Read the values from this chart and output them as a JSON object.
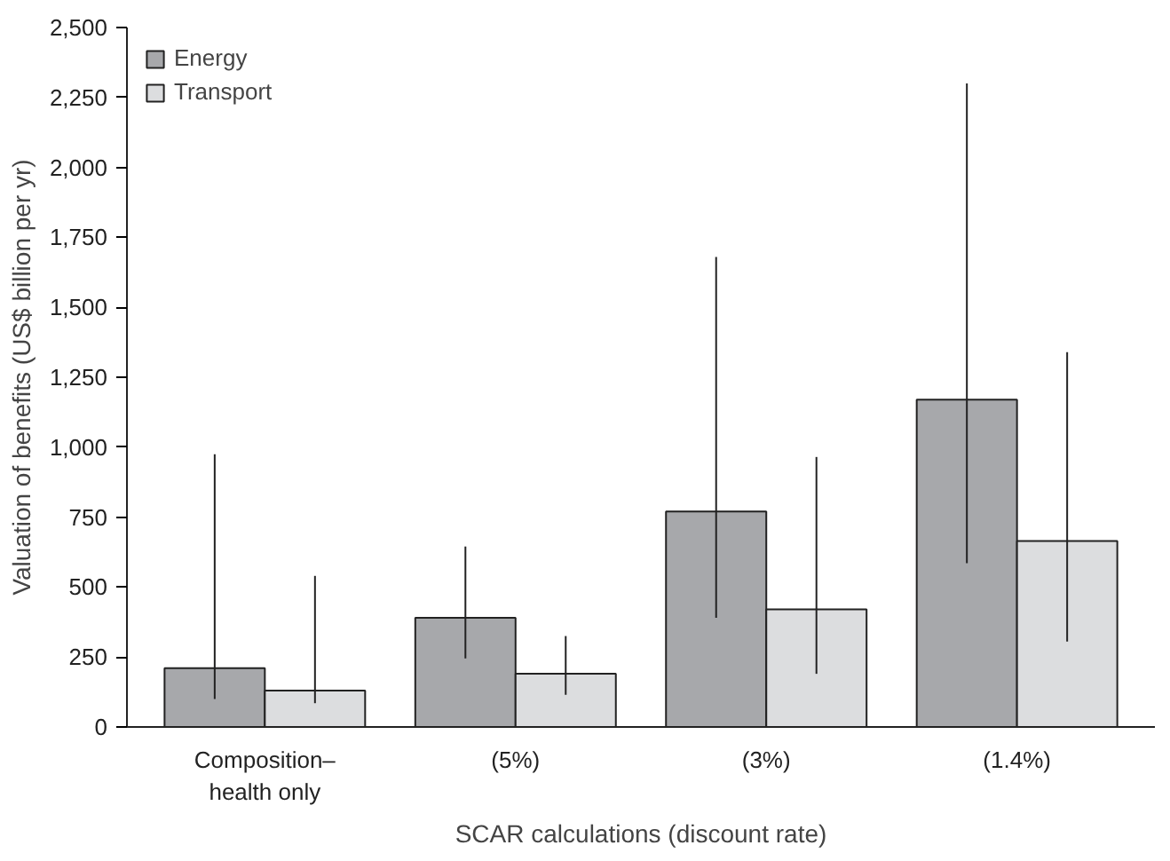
{
  "chart_data": {
    "type": "bar",
    "xlabel": "SCAR calculations (discount rate)",
    "ylabel": "Valuation of benefits (US$ billion per yr)",
    "categories": [
      "Composition–\nhealth only",
      "(5%)",
      "(3%)",
      "(1.4%)"
    ],
    "series": [
      {
        "name": "Energy",
        "color": "#a7a8ab",
        "values": [
          210,
          390,
          770,
          1170
        ],
        "errors": [
          [
            100,
            975
          ],
          [
            245,
            645
          ],
          [
            390,
            1680
          ],
          [
            585,
            2300
          ]
        ]
      },
      {
        "name": "Transport",
        "color": "#dcdddf",
        "values": [
          130,
          190,
          420,
          665
        ],
        "errors": [
          [
            85,
            540
          ],
          [
            115,
            325
          ],
          [
            190,
            965
          ],
          [
            305,
            1340
          ]
        ]
      }
    ],
    "ylim": [
      0,
      2500
    ],
    "yticks": [
      {
        "value": 0,
        "label": "0"
      },
      {
        "value": 250,
        "label": "250"
      },
      {
        "value": 500,
        "label": "500"
      },
      {
        "value": 750,
        "label": "750"
      },
      {
        "value": 1000,
        "label": "1,000"
      },
      {
        "value": 1250,
        "label": "1,250"
      },
      {
        "value": 1500,
        "label": "1,500"
      },
      {
        "value": 1750,
        "label": "1,750"
      },
      {
        "value": 2000,
        "label": "2,000"
      },
      {
        "value": 2250,
        "label": "2,250"
      },
      {
        "value": 2500,
        "label": "2,500"
      }
    ],
    "grid": false,
    "legend": "top left"
  }
}
